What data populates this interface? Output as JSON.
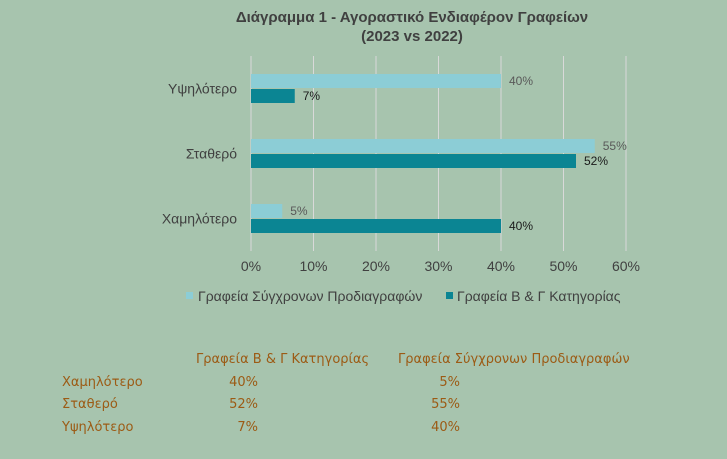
{
  "chart_data": {
    "type": "bar",
    "orientation": "horizontal",
    "title": "Διάγραμμα 1 - Αγοραστικό  Ενδιαφέρον Γραφείων",
    "subtitle": "(2023 vs 2022)",
    "categories": [
      "Υψηλότερο",
      "Σταθερό",
      "Χαμηλότερο"
    ],
    "series": [
      {
        "name": "Γραφεία Σύγχρονων Προδιαγραφών",
        "values": [
          40,
          55,
          5
        ],
        "labels": [
          "40%",
          "55%",
          "5%"
        ],
        "color": "#8ccdd6"
      },
      {
        "name": "Γραφεία Β & Γ Κατηγορίας",
        "values": [
          7,
          52,
          40
        ],
        "labels": [
          "7%",
          "52%",
          "40%"
        ],
        "color": "#0b8593"
      }
    ],
    "xlim": [
      0,
      60
    ],
    "ticks": [
      "0%",
      "10%",
      "20%",
      "30%",
      "40%",
      "50%",
      "60%"
    ],
    "grid": true,
    "legend_position": "bottom"
  },
  "table": {
    "headers": [
      "Γραφεία Β & Γ Κατηγορίας",
      "Γραφεία Σύγχρονων Προδιαγραφών"
    ],
    "rows": [
      {
        "category": "Χαμηλότερο",
        "bg_value": "40%",
        "modern_value": "5%"
      },
      {
        "category": "Σταθερό",
        "bg_value": "52%",
        "modern_value": "55%"
      },
      {
        "category": "Υψηλότερο",
        "bg_value": "7%",
        "modern_value": "40%"
      }
    ]
  }
}
